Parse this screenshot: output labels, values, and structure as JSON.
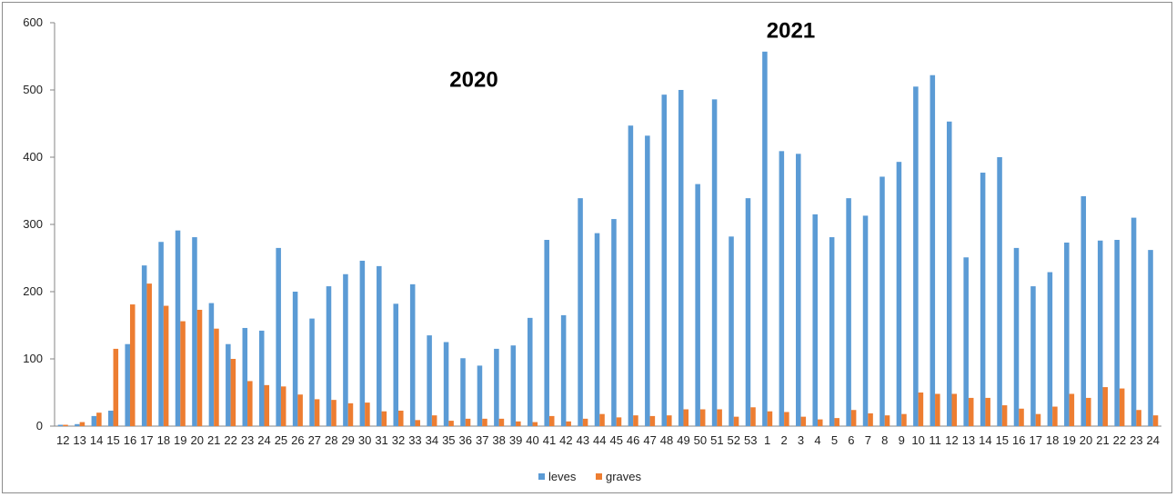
{
  "chart_data": {
    "type": "bar",
    "categories": [
      "12",
      "13",
      "14",
      "15",
      "16",
      "17",
      "18",
      "19",
      "20",
      "21",
      "22",
      "23",
      "24",
      "25",
      "26",
      "27",
      "28",
      "29",
      "30",
      "31",
      "32",
      "33",
      "34",
      "35",
      "36",
      "37",
      "38",
      "39",
      "40",
      "41",
      "42",
      "43",
      "44",
      "45",
      "46",
      "47",
      "48",
      "49",
      "50",
      "51",
      "52",
      "53",
      "1",
      "2",
      "3",
      "4",
      "5",
      "6",
      "7",
      "8",
      "9",
      "10",
      "11",
      "12",
      "13",
      "14",
      "15",
      "16",
      "17",
      "18",
      "19",
      "20",
      "21",
      "22",
      "23",
      "24"
    ],
    "series": [
      {
        "name": "leves",
        "color": "#5b9bd5",
        "values": [
          2,
          3,
          15,
          23,
          122,
          239,
          274,
          291,
          281,
          183,
          122,
          146,
          142,
          265,
          200,
          160,
          208,
          226,
          246,
          238,
          182,
          211,
          135,
          125,
          101,
          90,
          115,
          120,
          161,
          277,
          165,
          339,
          287,
          308,
          447,
          432,
          493,
          500,
          360,
          486,
          282,
          339,
          557,
          409,
          405,
          315,
          281,
          339,
          313,
          371,
          393,
          505,
          522,
          453,
          251,
          377,
          400,
          265,
          208,
          229,
          273,
          342,
          276,
          277,
          310,
          262
        ]
      },
      {
        "name": "graves",
        "color": "#ed7d31",
        "values": [
          2,
          6,
          20,
          115,
          181,
          212,
          179,
          156,
          173,
          145,
          100,
          67,
          61,
          59,
          47,
          40,
          39,
          34,
          35,
          22,
          23,
          9,
          16,
          8,
          11,
          11,
          11,
          7,
          6,
          15,
          7,
          11,
          18,
          13,
          16,
          15,
          16,
          25,
          25,
          25,
          14,
          28,
          22,
          21,
          14,
          10,
          12,
          24,
          19,
          16,
          18,
          50,
          48,
          48,
          42,
          42,
          31,
          26,
          18,
          29,
          48,
          42,
          58,
          56,
          24,
          16
        ]
      }
    ],
    "ylim": [
      0,
      600
    ],
    "yticks": [
      0,
      100,
      200,
      300,
      400,
      500,
      600
    ],
    "grid": false,
    "legend_position": "bottom",
    "annotations": [
      {
        "text": "2020",
        "x_index": 24.5,
        "y": 505
      },
      {
        "text": "2021",
        "x_index": 43.4,
        "y": 578
      }
    ],
    "title": "",
    "xlabel": "",
    "ylabel": ""
  }
}
